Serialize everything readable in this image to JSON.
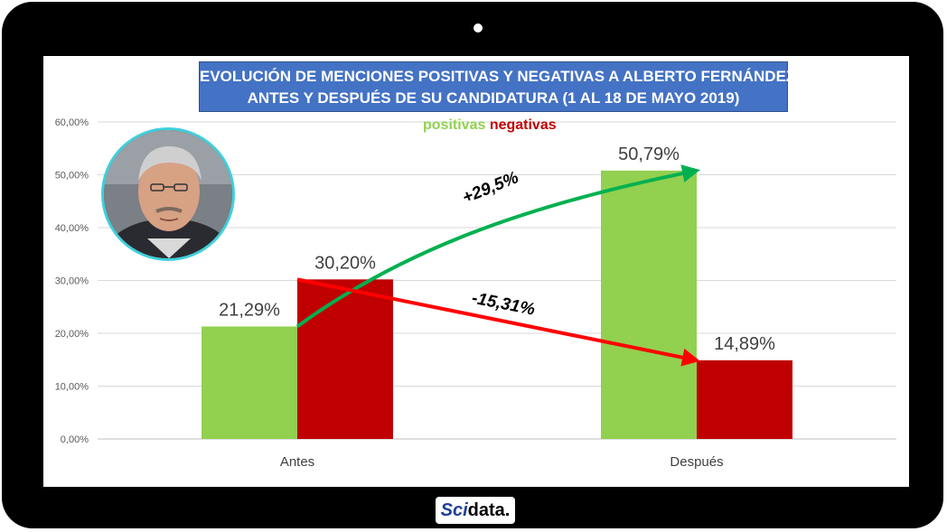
{
  "brand": "Scidata.",
  "brand_parts": {
    "sci": "Sci",
    "data": "data."
  },
  "chart_data": {
    "type": "bar",
    "title_lines": [
      "EVOLUCIÓN DE MENCIONES POSITIVAS Y NEGATIVAS A ALBERTO FERNÁNDEZ",
      "ANTES Y DESPUÉS DE SU CANDIDATURA (1 AL 18 DE MAYO 2019)"
    ],
    "categories": [
      "Antes",
      "Después"
    ],
    "series": [
      {
        "name": "positivas",
        "values": [
          21.29,
          50.79
        ],
        "labels": [
          "21,29%",
          "50,79%"
        ],
        "color": "#92d050"
      },
      {
        "name": "negativas",
        "values": [
          30.2,
          14.89
        ],
        "labels": [
          "30,20%",
          "14,89%"
        ],
        "color": "#c00000"
      }
    ],
    "ylim": [
      0,
      60
    ],
    "yticks": [
      "0,00%",
      "10,00%",
      "20,00%",
      "30,00%",
      "40,00%",
      "50,00%",
      "60,00%"
    ],
    "grid": true,
    "legend_position": "top-center",
    "annotations": [
      {
        "text": "+29,5%",
        "series": "positivas",
        "color": "#00b050"
      },
      {
        "text": "-15,31%",
        "series": "negativas",
        "color": "#ff0000"
      }
    ]
  }
}
